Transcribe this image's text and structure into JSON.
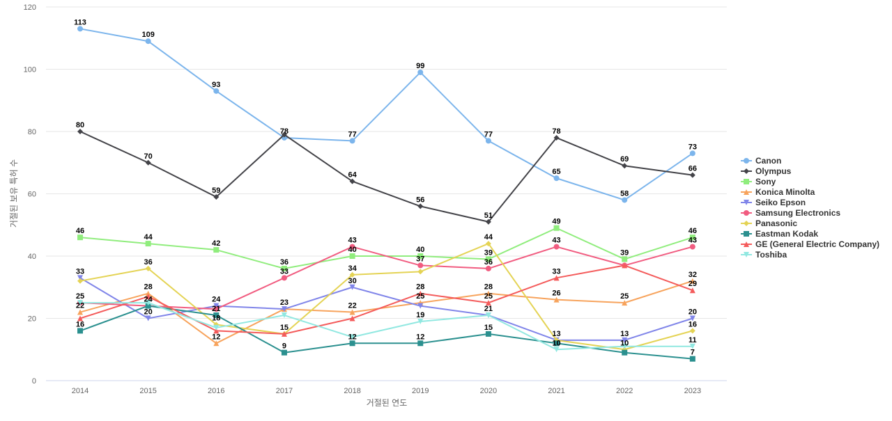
{
  "chart_data": {
    "type": "line",
    "title": "",
    "xlabel": "거절된 연도",
    "ylabel": "거절된 보유 특허 수",
    "ylim": [
      0,
      120
    ],
    "yticks": [
      0,
      20,
      40,
      60,
      80,
      100,
      120
    ],
    "grid": true,
    "legend_position": "right",
    "x": [
      "2014",
      "2015",
      "2016",
      "2017",
      "2018",
      "2019",
      "2020",
      "2021",
      "2022",
      "2023"
    ],
    "series": [
      {
        "name": "Canon",
        "color": "#7cb5ec",
        "marker": "circle",
        "values": [
          113,
          109,
          93,
          78,
          77,
          99,
          77,
          65,
          58,
          73
        ]
      },
      {
        "name": "Olympus",
        "color": "#434348",
        "marker": "diamond",
        "values": [
          80,
          70,
          59,
          79,
          64,
          56,
          51,
          78,
          69,
          66
        ]
      },
      {
        "name": "Sony",
        "color": "#90ed7d",
        "marker": "square",
        "values": [
          46,
          44,
          42,
          36,
          40,
          40,
          39,
          49,
          39,
          46
        ]
      },
      {
        "name": "Konica Minolta",
        "color": "#f7a35c",
        "marker": "triangle",
        "values": [
          22,
          28,
          12,
          23,
          22,
          25,
          28,
          26,
          25,
          32
        ]
      },
      {
        "name": "Seiko Epson",
        "color": "#8085e9",
        "marker": "triangle-down",
        "values": [
          33,
          20,
          24,
          23,
          30,
          24,
          21,
          13,
          13,
          20
        ]
      },
      {
        "name": "Samsung Electronics",
        "color": "#f15c80",
        "marker": "circle",
        "values": [
          25,
          24,
          23,
          33,
          43,
          37,
          36,
          43,
          37,
          43
        ]
      },
      {
        "name": "Panasonic",
        "color": "#e4d354",
        "marker": "diamond",
        "values": [
          32,
          36,
          18,
          15,
          34,
          35,
          44,
          13,
          10,
          16
        ]
      },
      {
        "name": "Eastman Kodak",
        "color": "#2b908f",
        "marker": "square",
        "values": [
          16,
          24,
          21,
          9,
          12,
          12,
          15,
          12,
          9,
          7
        ]
      },
      {
        "name": "GE (General Electric Company)",
        "color": "#f45b5b",
        "marker": "triangle",
        "values": [
          20,
          27,
          16,
          15,
          20,
          28,
          25,
          33,
          37,
          29
        ]
      },
      {
        "name": "Toshiba",
        "color": "#91e8e1",
        "marker": "triangle-down",
        "values": [
          25,
          25,
          17,
          21,
          14,
          19,
          21,
          10,
          11,
          11
        ]
      }
    ],
    "data_labels": [
      {
        "x": "2014",
        "text": "113",
        "value": 113
      },
      {
        "x": "2014",
        "text": "80",
        "value": 80
      },
      {
        "x": "2014",
        "text": "46",
        "value": 46
      },
      {
        "x": "2014",
        "text": "33",
        "value": 33
      },
      {
        "x": "2014",
        "text": "25",
        "value": 25
      },
      {
        "x": "2014",
        "text": "22",
        "value": 22
      },
      {
        "x": "2014",
        "text": "16",
        "value": 16
      },
      {
        "x": "2015",
        "text": "109",
        "value": 109
      },
      {
        "x": "2015",
        "text": "70",
        "value": 70
      },
      {
        "x": "2015",
        "text": "44",
        "value": 44
      },
      {
        "x": "2015",
        "text": "36",
        "value": 36
      },
      {
        "x": "2015",
        "text": "28",
        "value": 28
      },
      {
        "x": "2015",
        "text": "24",
        "value": 24
      },
      {
        "x": "2015",
        "text": "20",
        "value": 20
      },
      {
        "x": "2016",
        "text": "93",
        "value": 93
      },
      {
        "x": "2016",
        "text": "59",
        "value": 59
      },
      {
        "x": "2016",
        "text": "42",
        "value": 42
      },
      {
        "x": "2016",
        "text": "24",
        "value": 24
      },
      {
        "x": "2016",
        "text": "21",
        "value": 21
      },
      {
        "x": "2016",
        "text": "18",
        "value": 18
      },
      {
        "x": "2016",
        "text": "12",
        "value": 12
      },
      {
        "x": "2017",
        "text": "78",
        "value": 78
      },
      {
        "x": "2017",
        "text": "36",
        "value": 36
      },
      {
        "x": "2017",
        "text": "33",
        "value": 33
      },
      {
        "x": "2017",
        "text": "23",
        "value": 23
      },
      {
        "x": "2017",
        "text": "15",
        "value": 15
      },
      {
        "x": "2017",
        "text": "9",
        "value": 9
      },
      {
        "x": "2018",
        "text": "77",
        "value": 77
      },
      {
        "x": "2018",
        "text": "64",
        "value": 64
      },
      {
        "x": "2018",
        "text": "43",
        "value": 43
      },
      {
        "x": "2018",
        "text": "40",
        "value": 40
      },
      {
        "x": "2018",
        "text": "34",
        "value": 34
      },
      {
        "x": "2018",
        "text": "30",
        "value": 30
      },
      {
        "x": "2018",
        "text": "22",
        "value": 22
      },
      {
        "x": "2018",
        "text": "12",
        "value": 12
      },
      {
        "x": "2019",
        "text": "99",
        "value": 99
      },
      {
        "x": "2019",
        "text": "56",
        "value": 56
      },
      {
        "x": "2019",
        "text": "40",
        "value": 40
      },
      {
        "x": "2019",
        "text": "37",
        "value": 37
      },
      {
        "x": "2019",
        "text": "28",
        "value": 28
      },
      {
        "x": "2019",
        "text": "25",
        "value": 25
      },
      {
        "x": "2019",
        "text": "19",
        "value": 19
      },
      {
        "x": "2019",
        "text": "12",
        "value": 12
      },
      {
        "x": "2020",
        "text": "77",
        "value": 77
      },
      {
        "x": "2020",
        "text": "51",
        "value": 51
      },
      {
        "x": "2020",
        "text": "44",
        "value": 44
      },
      {
        "x": "2020",
        "text": "39",
        "value": 39
      },
      {
        "x": "2020",
        "text": "36",
        "value": 36
      },
      {
        "x": "2020",
        "text": "28",
        "value": 28
      },
      {
        "x": "2020",
        "text": "25",
        "value": 25
      },
      {
        "x": "2020",
        "text": "21",
        "value": 21
      },
      {
        "x": "2020",
        "text": "15",
        "value": 15
      },
      {
        "x": "2021",
        "text": "78",
        "value": 78
      },
      {
        "x": "2021",
        "text": "65",
        "value": 65
      },
      {
        "x": "2021",
        "text": "49",
        "value": 49
      },
      {
        "x": "2021",
        "text": "43",
        "value": 43
      },
      {
        "x": "2021",
        "text": "33",
        "value": 33
      },
      {
        "x": "2021",
        "text": "26",
        "value": 26
      },
      {
        "x": "2021",
        "text": "13",
        "value": 13
      },
      {
        "x": "2021",
        "text": "10",
        "value": 10
      },
      {
        "x": "2022",
        "text": "69",
        "value": 69
      },
      {
        "x": "2022",
        "text": "58",
        "value": 58
      },
      {
        "x": "2022",
        "text": "39",
        "value": 39
      },
      {
        "x": "2022",
        "text": "25",
        "value": 25
      },
      {
        "x": "2022",
        "text": "13",
        "value": 13
      },
      {
        "x": "2022",
        "text": "10",
        "value": 10
      },
      {
        "x": "2023",
        "text": "73",
        "value": 73
      },
      {
        "x": "2023",
        "text": "66",
        "value": 66
      },
      {
        "x": "2023",
        "text": "46",
        "value": 46
      },
      {
        "x": "2023",
        "text": "43",
        "value": 43
      },
      {
        "x": "2023",
        "text": "32",
        "value": 32
      },
      {
        "x": "2023",
        "text": "29",
        "value": 29
      },
      {
        "x": "2023",
        "text": "20",
        "value": 20
      },
      {
        "x": "2023",
        "text": "16",
        "value": 16
      },
      {
        "x": "2023",
        "text": "11",
        "value": 11
      },
      {
        "x": "2023",
        "text": "7",
        "value": 7
      }
    ]
  }
}
